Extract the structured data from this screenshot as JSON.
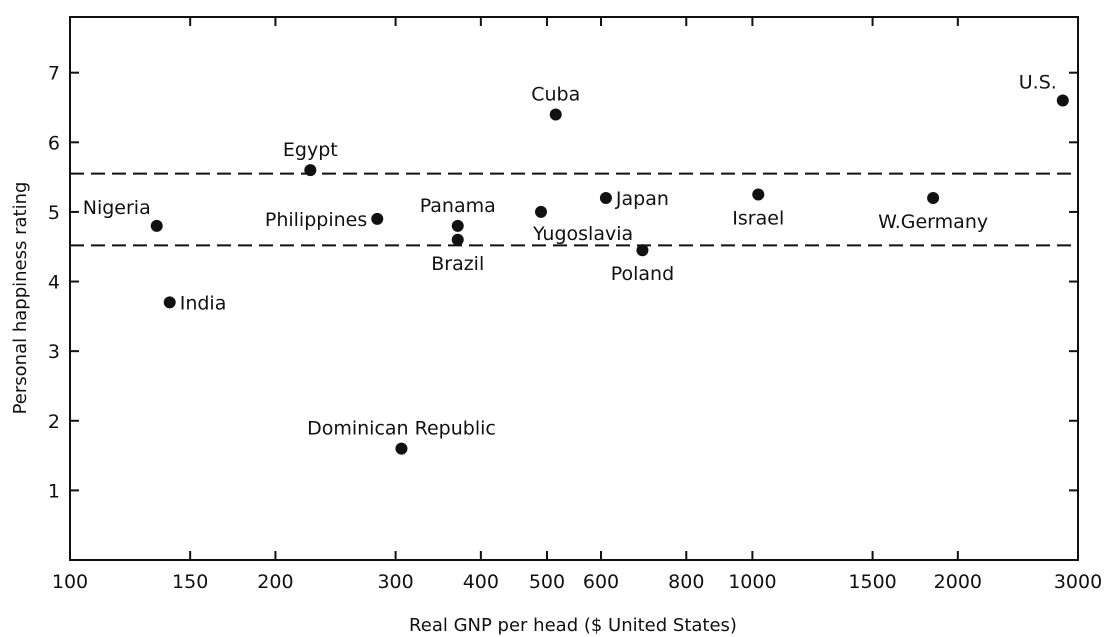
{
  "chart_data": {
    "type": "scatter",
    "title": "",
    "xlabel": "Real GNP per head ($ United States)",
    "ylabel": "Personal happiness rating",
    "x_scale": "log",
    "xlim": [
      100,
      3000
    ],
    "ylim": [
      0,
      7.8
    ],
    "x_ticks": [
      {
        "value": 100,
        "label": "100"
      },
      {
        "value": 150,
        "label": "150"
      },
      {
        "value": 200,
        "label": "200"
      },
      {
        "value": 300,
        "label": "300"
      },
      {
        "value": 400,
        "label": "400"
      },
      {
        "value": 500,
        "label": "500"
      },
      {
        "value": 600,
        "label": "600"
      },
      {
        "value": 800,
        "label": "800"
      },
      {
        "value": 1000,
        "label": "1000"
      },
      {
        "value": 1500,
        "label": "1500"
      },
      {
        "value": 2000,
        "label": "2000"
      },
      {
        "value": 3000,
        "label": "3000"
      }
    ],
    "y_ticks": [
      {
        "value": 1,
        "label": "1"
      },
      {
        "value": 2,
        "label": "2"
      },
      {
        "value": 3,
        "label": "3"
      },
      {
        "value": 4,
        "label": "4"
      },
      {
        "value": 5,
        "label": "5"
      },
      {
        "value": 6,
        "label": "6"
      },
      {
        "value": 7,
        "label": "7"
      }
    ],
    "reference_lines": [
      {
        "orientation": "horizontal",
        "y": 5.55,
        "style": "dashed"
      },
      {
        "orientation": "horizontal",
        "y": 4.52,
        "style": "dashed"
      }
    ],
    "grid": false,
    "legend": "none",
    "points": [
      {
        "label": "Nigeria",
        "x": 134,
        "y": 4.8,
        "label_pos": "above-left"
      },
      {
        "label": "India",
        "x": 140,
        "y": 3.7,
        "label_pos": "right"
      },
      {
        "label": "Egypt",
        "x": 225,
        "y": 5.6,
        "label_pos": "above"
      },
      {
        "label": "Philippines",
        "x": 282,
        "y": 4.9,
        "label_pos": "left"
      },
      {
        "label": "Dominican Republic",
        "x": 306,
        "y": 1.6,
        "label_pos": "above"
      },
      {
        "label": "Panama",
        "x": 370,
        "y": 4.8,
        "label_pos": "above"
      },
      {
        "label": "Brazil",
        "x": 370,
        "y": 4.6,
        "label_pos": "below"
      },
      {
        "label": "Yugoslavia",
        "x": 490,
        "y": 5.0,
        "label_pos": "below-right"
      },
      {
        "label": "Cuba",
        "x": 515,
        "y": 6.4,
        "label_pos": "above"
      },
      {
        "label": "Japan",
        "x": 610,
        "y": 5.2,
        "label_pos": "right"
      },
      {
        "label": "Poland",
        "x": 690,
        "y": 4.45,
        "label_pos": "below"
      },
      {
        "label": "Israel",
        "x": 1020,
        "y": 5.25,
        "label_pos": "below"
      },
      {
        "label": "W.Germany",
        "x": 1840,
        "y": 5.2,
        "label_pos": "below"
      },
      {
        "label": "U.S.",
        "x": 2850,
        "y": 6.6,
        "label_pos": "above-left"
      }
    ]
  }
}
